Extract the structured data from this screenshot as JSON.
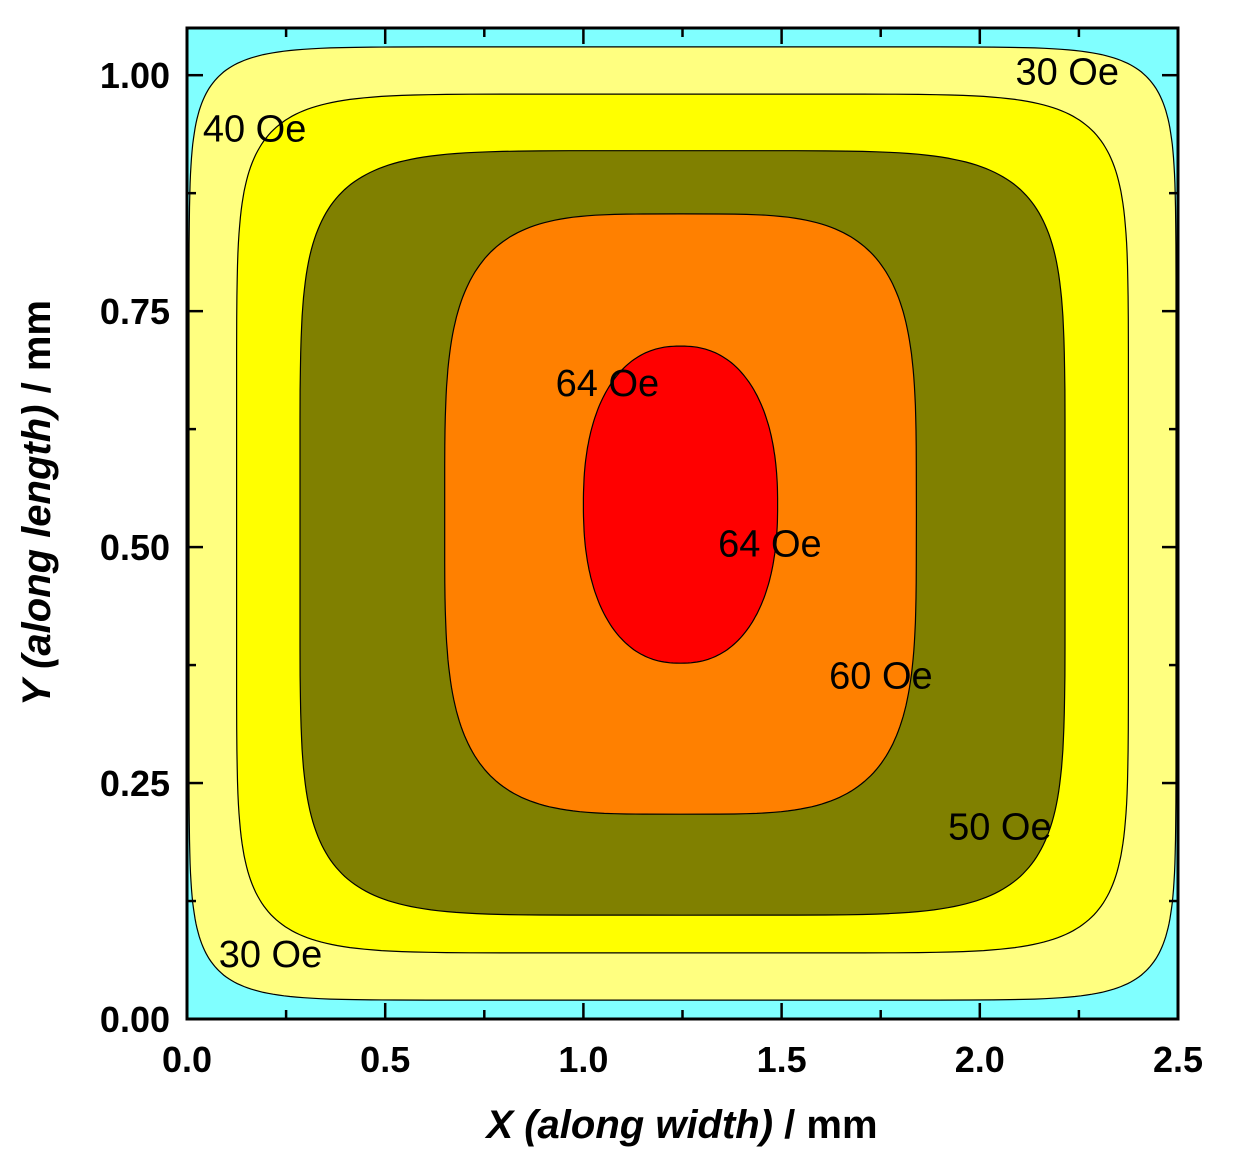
{
  "chart_data": {
    "type": "contour",
    "xlabel": {
      "italic": "X (along width)",
      "rest": " / mm"
    },
    "ylabel": {
      "italic": "Y (along length)",
      "rest": " / mm"
    },
    "xlim": [
      0.0,
      2.5
    ],
    "ylim": [
      0.0,
      1.05
    ],
    "x_ticks": [
      {
        "value": 0.0,
        "label": "0.0"
      },
      {
        "value": 0.5,
        "label": "0.5"
      },
      {
        "value": 1.0,
        "label": "1.0"
      },
      {
        "value": 1.5,
        "label": "1.5"
      },
      {
        "value": 2.0,
        "label": "2.0"
      },
      {
        "value": 2.5,
        "label": "2.5"
      }
    ],
    "x_minor_ticks": [
      0.25,
      0.75,
      1.25,
      1.75,
      2.25
    ],
    "y_ticks": [
      {
        "value": 0.0,
        "label": "0.00"
      },
      {
        "value": 0.25,
        "label": "0.25"
      },
      {
        "value": 0.5,
        "label": "0.50"
      },
      {
        "value": 0.75,
        "label": "0.75"
      },
      {
        "value": 1.0,
        "label": "1.00"
      }
    ],
    "y_minor_ticks": [
      0.125,
      0.375,
      0.625,
      0.875
    ],
    "background_color": "#80ffff",
    "levels": [
      {
        "value": 30,
        "color": "#ffff80",
        "cx": 1.25,
        "cy": 0.525,
        "a": 1.245,
        "b": 0.505,
        "n": 11
      },
      {
        "value": 40,
        "color": "#ffff00",
        "cx": 1.25,
        "cy": 0.525,
        "a": 1.125,
        "b": 0.455,
        "n": 8
      },
      {
        "value": 50,
        "color": "#808000",
        "cx": 1.25,
        "cy": 0.515,
        "a": 0.965,
        "b": 0.405,
        "n": 6
      },
      {
        "value": 60,
        "color": "#ff8000",
        "cx": 1.245,
        "cy": 0.535,
        "a": 0.595,
        "b": 0.318,
        "n": 4
      },
      {
        "value": 64,
        "color": "#ff0000",
        "cx": 1.245,
        "cy": 0.545,
        "a": 0.245,
        "b": 0.168,
        "n": 2.3
      }
    ],
    "annotations": [
      {
        "text": "30 Oe",
        "x": 2.09,
        "y": 0.99
      },
      {
        "text": "40 Oe",
        "x": 0.04,
        "y": 0.93
      },
      {
        "text": "64 Oe",
        "x": 0.93,
        "y": 0.66
      },
      {
        "text": "64 Oe",
        "x": 1.34,
        "y": 0.49
      },
      {
        "text": "60 Oe",
        "x": 1.62,
        "y": 0.35
      },
      {
        "text": "50 Oe",
        "x": 1.92,
        "y": 0.19
      },
      {
        "text": "30 Oe",
        "x": 0.08,
        "y": 0.055
      }
    ]
  }
}
